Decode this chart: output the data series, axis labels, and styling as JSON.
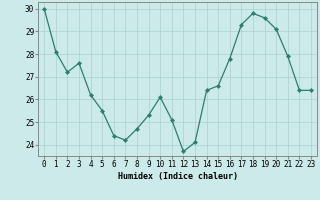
{
  "x": [
    0,
    1,
    2,
    3,
    4,
    5,
    6,
    7,
    8,
    9,
    10,
    11,
    12,
    13,
    14,
    15,
    16,
    17,
    18,
    19,
    20,
    21,
    22,
    23
  ],
  "y": [
    30.0,
    28.1,
    27.2,
    27.6,
    26.2,
    25.5,
    24.4,
    24.2,
    24.7,
    25.3,
    26.1,
    25.1,
    23.7,
    24.1,
    26.4,
    26.6,
    27.8,
    29.3,
    29.8,
    29.6,
    29.1,
    27.9,
    26.4,
    26.4
  ],
  "xlabel": "Humidex (Indice chaleur)",
  "ylim": [
    23.5,
    30.3
  ],
  "xlim": [
    -0.5,
    23.5
  ],
  "yticks": [
    24,
    25,
    26,
    27,
    28,
    29,
    30
  ],
  "xticks": [
    0,
    1,
    2,
    3,
    4,
    5,
    6,
    7,
    8,
    9,
    10,
    11,
    12,
    13,
    14,
    15,
    16,
    17,
    18,
    19,
    20,
    21,
    22,
    23
  ],
  "line_color": "#2e7d6e",
  "marker_color": "#2e7d6e",
  "bg_color": "#cceaea",
  "grid_color": "#aacfcf",
  "axis_color": "#888888",
  "label_fontsize": 6.0,
  "tick_fontsize": 5.5
}
